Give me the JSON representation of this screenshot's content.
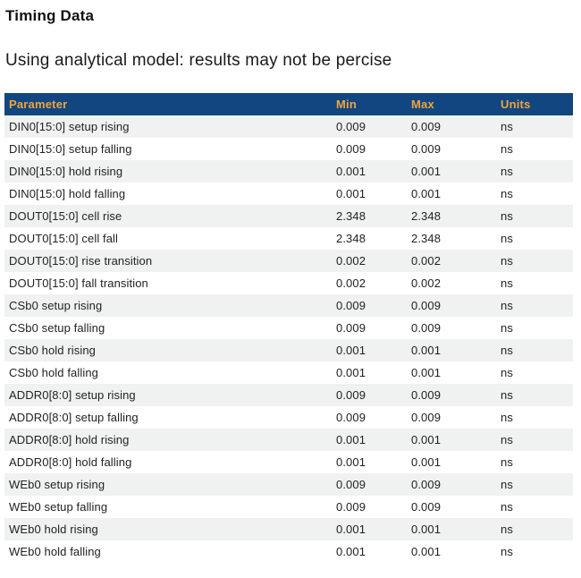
{
  "page": {
    "title": "Timing Data",
    "subtitle": "Using analytical model: results may not be percise"
  },
  "colors": {
    "header_bg": "#114680",
    "header_text": "#f0a43c",
    "row_alt_bg": "#f0f1f1",
    "row_bg": "#ffffff",
    "row_text": "#222222"
  },
  "table": {
    "columns": [
      "Parameter",
      "Min",
      "Max",
      "Units"
    ],
    "rows": [
      {
        "parameter": "DIN0[15:0] setup rising",
        "min": "0.009",
        "max": "0.009",
        "units": "ns"
      },
      {
        "parameter": "DIN0[15:0] setup falling",
        "min": "0.009",
        "max": "0.009",
        "units": "ns"
      },
      {
        "parameter": "DIN0[15:0] hold rising",
        "min": "0.001",
        "max": "0.001",
        "units": "ns"
      },
      {
        "parameter": "DIN0[15:0] hold falling",
        "min": "0.001",
        "max": "0.001",
        "units": "ns"
      },
      {
        "parameter": "DOUT0[15:0] cell rise",
        "min": "2.348",
        "max": "2.348",
        "units": "ns"
      },
      {
        "parameter": "DOUT0[15:0] cell fall",
        "min": "2.348",
        "max": "2.348",
        "units": "ns"
      },
      {
        "parameter": "DOUT0[15:0] rise transition",
        "min": "0.002",
        "max": "0.002",
        "units": "ns"
      },
      {
        "parameter": "DOUT0[15:0] fall transition",
        "min": "0.002",
        "max": "0.002",
        "units": "ns"
      },
      {
        "parameter": "CSb0 setup rising",
        "min": "0.009",
        "max": "0.009",
        "units": "ns"
      },
      {
        "parameter": "CSb0 setup falling",
        "min": "0.009",
        "max": "0.009",
        "units": "ns"
      },
      {
        "parameter": "CSb0 hold rising",
        "min": "0.001",
        "max": "0.001",
        "units": "ns"
      },
      {
        "parameter": "CSb0 hold falling",
        "min": "0.001",
        "max": "0.001",
        "units": "ns"
      },
      {
        "parameter": "ADDR0[8:0] setup rising",
        "min": "0.009",
        "max": "0.009",
        "units": "ns"
      },
      {
        "parameter": "ADDR0[8:0] setup falling",
        "min": "0.009",
        "max": "0.009",
        "units": "ns"
      },
      {
        "parameter": "ADDR0[8:0] hold rising",
        "min": "0.001",
        "max": "0.001",
        "units": "ns"
      },
      {
        "parameter": "ADDR0[8:0] hold falling",
        "min": "0.001",
        "max": "0.001",
        "units": "ns"
      },
      {
        "parameter": "WEb0 setup rising",
        "min": "0.009",
        "max": "0.009",
        "units": "ns"
      },
      {
        "parameter": "WEb0 setup falling",
        "min": "0.009",
        "max": "0.009",
        "units": "ns"
      },
      {
        "parameter": "WEb0 hold rising",
        "min": "0.001",
        "max": "0.001",
        "units": "ns"
      },
      {
        "parameter": "WEb0 hold falling",
        "min": "0.001",
        "max": "0.001",
        "units": "ns"
      }
    ]
  }
}
